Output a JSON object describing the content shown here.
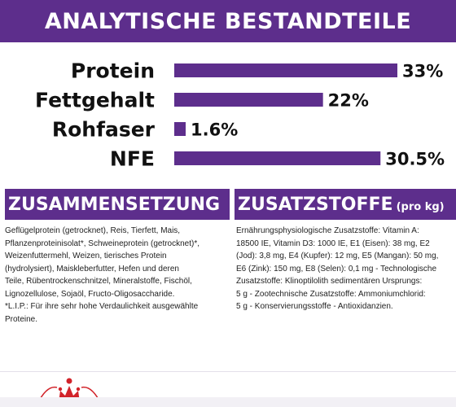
{
  "title": "ANALYTISCHE BESTANDTEILE",
  "chart_data": {
    "type": "bar",
    "orientation": "horizontal",
    "categories": [
      "Protein",
      "Fettgehalt",
      "Rohfaser",
      "NFE"
    ],
    "values": [
      33,
      22,
      1.6,
      30.5
    ],
    "value_labels": [
      "33%",
      "22%",
      "1.6%",
      "30.5%"
    ],
    "unit": "%",
    "xlim": [
      0,
      33
    ],
    "grid": false,
    "bar_color": "#5d2e8c"
  },
  "composition": {
    "title": "ZUSAMMENSETZUNG",
    "text": "Geflügelprotein (getrocknet), Reis, Tierfett, Mais,\nPflanzenproteinisolat*, Schweineprotein (getrocknet)*,\nWeizenfuttermehl, Weizen, tierisches Protein\n(hydrolysiert), Maiskleberfutter, Hefen und deren\nTeile, Rübentrockenschnitzel, Mineralstoffe, Fischöl,\nLignozellulose, Sojaöl, Fructo-Oligosaccharide.\n*L.I.P.: Für ihre sehr hohe Verdaulichkeit ausgewählte\nProteine."
  },
  "additives": {
    "title": "ZUSATZSTOFFE",
    "title_suffix": "(pro kg)",
    "text": "Ernährungsphysiologische Zusatzstoffe: Vitamin A:\n18500 IE, Vitamin D3: 1000 IE, E1 (Eisen): 38 mg, E2\n(Jod): 3,8 mg, E4 (Kupfer): 12 mg, E5 (Mangan): 50 mg,\nE6 (Zink): 150 mg, E8 (Selen): 0,1 mg - Technologische\nZusatzstoffe: Klinoptilolith sedimentären Ursprungs:\n5 g - Zootechnische Zusatzstoffe: Ammoniumchlorid:\n5 g - Konservierungsstoffe - Antioxidanzien."
  },
  "logo": {
    "icon": "royal-canin-crown-icon",
    "color": "#d2232a"
  }
}
